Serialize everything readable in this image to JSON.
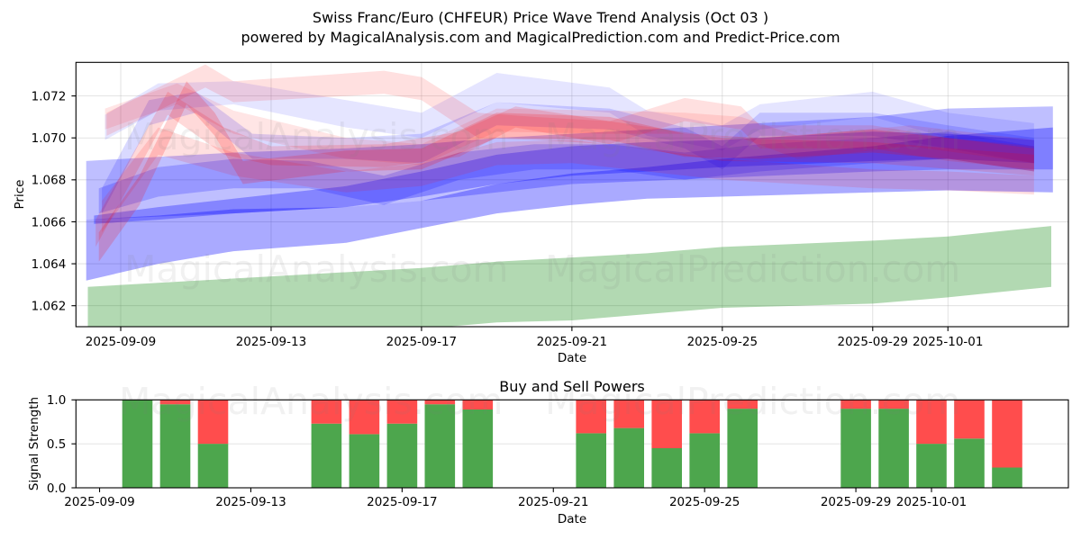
{
  "figure": {
    "title": "Swiss Franc/Euro (CHFEUR) Price Wave Trend Analysis (Oct 03 )",
    "subtitle": "powered by MagicalAnalysis.com and MagicalPrediction.com and Predict-Price.com",
    "watermarks": [
      "MagicalAnalysis.com",
      "MagicalPrediction.com"
    ]
  },
  "colors": {
    "buy": "#4da64d",
    "sell": "#ff4d4d",
    "grid": "#b0b0b0",
    "frame": "#000000"
  },
  "chart_data": [
    {
      "type": "area",
      "title": "",
      "xlabel": "Date",
      "ylabel": "Price",
      "xlim": [
        "2025-09-07T19:25",
        "2025-10-04T04:54"
      ],
      "ylim": [
        1.061,
        1.0736
      ],
      "xticks": [
        "2025-09-09",
        "2025-09-13",
        "2025-09-17",
        "2025-09-21",
        "2025-09-25",
        "2025-09-29",
        "2025-10-01"
      ],
      "yticks": [
        1.062,
        1.064,
        1.066,
        1.068,
        1.07,
        1.072
      ],
      "ytick_labels": [
        "1.062",
        "1.064",
        "1.066",
        "1.068",
        "1.070",
        "1.072"
      ],
      "grid": true,
      "legend": "none",
      "series": [
        {
          "kind": "forecast",
          "color": "#0080004d",
          "points": [
            [
              "2025-09-08T03:00",
              1.0629,
              1.0598
            ],
            [
              "2025-09-13",
              1.0634,
              1.0604
            ],
            [
              "2025-09-17",
              1.0638,
              1.0609
            ],
            [
              "2025-09-19",
              1.0641,
              1.0612
            ],
            [
              "2025-09-21",
              1.0643,
              1.0613
            ],
            [
              "2025-09-23",
              1.0645,
              1.0616
            ],
            [
              "2025-09-25",
              1.0648,
              1.0619
            ],
            [
              "2025-09-29",
              1.0651,
              1.0621
            ],
            [
              "2025-10-01",
              1.0653,
              1.0624
            ],
            [
              "2025-10-03T18:00",
              1.0658,
              1.0629
            ]
          ]
        },
        {
          "kind": "blue",
          "color": "#0000ff55",
          "points": [
            [
              "2025-09-08T02:00",
              1.0661,
              1.0632
            ],
            [
              "2025-09-10",
              1.0663,
              1.064
            ],
            [
              "2025-09-12",
              1.0666,
              1.0646
            ],
            [
              "2025-09-15",
              1.0667,
              1.065
            ],
            [
              "2025-09-17",
              1.067,
              1.0657
            ],
            [
              "2025-09-19",
              1.0678,
              1.0664
            ],
            [
              "2025-09-21",
              1.0683,
              1.0668
            ],
            [
              "2025-09-23",
              1.0686,
              1.0671
            ],
            [
              "2025-09-25",
              1.069,
              1.0672
            ],
            [
              "2025-09-29",
              1.0696,
              1.0674
            ],
            [
              "2025-10-01",
              1.0701,
              1.0675
            ],
            [
              "2025-10-03T19:00",
              1.0705,
              1.0674
            ]
          ]
        },
        {
          "kind": "blue",
          "color": "#0000ff40",
          "points": [
            [
              "2025-09-08T02:00",
              1.0689,
              1.0661
            ],
            [
              "2025-09-12",
              1.0693,
              1.0664
            ],
            [
              "2025-09-15",
              1.0695,
              1.0667
            ],
            [
              "2025-09-17",
              1.0697,
              1.067
            ],
            [
              "2025-09-19",
              1.07,
              1.0674
            ],
            [
              "2025-09-21",
              1.0702,
              1.0678
            ],
            [
              "2025-09-25",
              1.0706,
              1.0681
            ],
            [
              "2025-09-29",
              1.071,
              1.0684
            ],
            [
              "2025-10-01",
              1.0714,
              1.0685
            ],
            [
              "2025-10-03T19:00",
              1.0715,
              1.0685
            ]
          ]
        },
        {
          "kind": "blue",
          "color": "#0000ff4d",
          "points": [
            [
              "2025-09-08T07:00",
              1.0663,
              1.0659
            ],
            [
              "2025-09-10",
              1.0667,
              1.0661
            ],
            [
              "2025-09-12",
              1.0671,
              1.0664
            ],
            [
              "2025-09-15",
              1.0677,
              1.0667
            ],
            [
              "2025-09-17",
              1.0684,
              1.0672
            ],
            [
              "2025-09-19",
              1.0692,
              1.0678
            ],
            [
              "2025-09-21",
              1.0696,
              1.0682
            ],
            [
              "2025-09-23",
              1.0698,
              1.0684
            ],
            [
              "2025-09-25",
              1.0699,
              1.0686
            ],
            [
              "2025-09-29",
              1.0703,
              1.0689
            ],
            [
              "2025-10-01",
              1.0702,
              1.069
            ],
            [
              "2025-10-03T07:00",
              1.0699,
              1.0688
            ]
          ]
        },
        {
          "kind": "blue",
          "color": "#0000ff33",
          "points": [
            [
              "2025-09-08T10:00",
              1.0676,
              1.0664
            ],
            [
              "2025-09-10",
              1.0686,
              1.0672
            ],
            [
              "2025-09-12",
              1.069,
              1.0676
            ],
            [
              "2025-09-14",
              1.0689,
              1.0676
            ],
            [
              "2025-09-16",
              1.0682,
              1.0668
            ],
            [
              "2025-09-18",
              1.0693,
              1.068
            ],
            [
              "2025-09-20",
              1.0697,
              1.0685
            ],
            [
              "2025-09-22",
              1.0697,
              1.0685
            ],
            [
              "2025-09-24",
              1.0693,
              1.068
            ],
            [
              "2025-09-26",
              1.0697,
              1.0684
            ],
            [
              "2025-09-29",
              1.07,
              1.0688
            ],
            [
              "2025-10-01",
              1.0703,
              1.069
            ],
            [
              "2025-10-03T07:00",
              1.0696,
              1.0684
            ]
          ]
        },
        {
          "kind": "blue",
          "color": "#0000ff26",
          "points": [
            [
              "2025-09-08T12:00",
              1.0676,
              1.0664
            ],
            [
              "2025-09-09T18:00",
              1.0718,
              1.0706
            ],
            [
              "2025-09-11",
              1.0722,
              1.0712
            ],
            [
              "2025-09-12T12:00",
              1.0702,
              1.069
            ],
            [
              "2025-09-15",
              1.07,
              1.069
            ],
            [
              "2025-09-17",
              1.0702,
              1.0688
            ],
            [
              "2025-09-19",
              1.0717,
              1.0706
            ],
            [
              "2025-09-22",
              1.0714,
              1.0704
            ],
            [
              "2025-09-24",
              1.0705,
              1.0695
            ],
            [
              "2025-09-25",
              1.0696,
              1.0685
            ],
            [
              "2025-09-26",
              1.0712,
              1.0701
            ],
            [
              "2025-09-29",
              1.0712,
              1.0701
            ],
            [
              "2025-10-01",
              1.0706,
              1.0695
            ],
            [
              "2025-10-03T07:00",
              1.07,
              1.0688
            ]
          ]
        },
        {
          "kind": "blue",
          "color": "#0000ff1a",
          "points": [
            [
              "2025-09-08T14:00",
              1.0711,
              1.0699
            ],
            [
              "2025-09-10",
              1.0726,
              1.0713
            ],
            [
              "2025-09-12",
              1.0727,
              1.0716
            ],
            [
              "2025-09-15",
              1.0718,
              1.0705
            ],
            [
              "2025-09-17",
              1.0712,
              1.07
            ],
            [
              "2025-09-19",
              1.0731,
              1.0717
            ],
            [
              "2025-09-22",
              1.0724,
              1.0712
            ],
            [
              "2025-09-23",
              1.0713,
              1.0701
            ],
            [
              "2025-09-25",
              1.0706,
              1.0694
            ],
            [
              "2025-09-26",
              1.0716,
              1.0704
            ],
            [
              "2025-09-29",
              1.0722,
              1.071
            ],
            [
              "2025-10-01",
              1.0712,
              1.07
            ],
            [
              "2025-10-03T07:00",
              1.0707,
              1.0695
            ]
          ]
        },
        {
          "kind": "red",
          "color": "#ff00001f",
          "points": [
            [
              "2025-09-08T15:00",
              1.0712,
              1.0701
            ],
            [
              "2025-09-11T06:00",
              1.0735,
              1.0724
            ],
            [
              "2025-09-12",
              1.0727,
              1.0717
            ],
            [
              "2025-09-16",
              1.0732,
              1.0721
            ],
            [
              "2025-09-17",
              1.0729,
              1.0718
            ],
            [
              "2025-09-18T12:00",
              1.0712,
              1.07
            ],
            [
              "2025-09-20",
              1.071,
              1.0699
            ],
            [
              "2025-09-22",
              1.0708,
              1.0697
            ],
            [
              "2025-09-24",
              1.0719,
              1.0708
            ],
            [
              "2025-09-25T12:00",
              1.0715,
              1.0704
            ],
            [
              "2025-09-26",
              1.0706,
              1.0695
            ],
            [
              "2025-09-29",
              1.0706,
              1.0695
            ],
            [
              "2025-10-01",
              1.07,
              1.0689
            ],
            [
              "2025-10-03T07:00",
              1.0696,
              1.0685
            ]
          ]
        },
        {
          "kind": "red",
          "color": "#ff00002e",
          "points": [
            [
              "2025-09-08T10:00",
              1.0655,
              1.0641
            ],
            [
              "2025-09-09T12:00",
              1.0682,
              1.0668
            ],
            [
              "2025-09-10T18:00",
              1.0727,
              1.0716
            ],
            [
              "2025-09-11T12:00",
              1.0712,
              1.0701
            ],
            [
              "2025-09-12T06:00",
              1.0689,
              1.0678
            ],
            [
              "2025-09-15",
              1.0694,
              1.0684
            ],
            [
              "2025-09-17",
              1.0695,
              1.0685
            ],
            [
              "2025-09-19",
              1.0712,
              1.07
            ],
            [
              "2025-09-22",
              1.071,
              1.0699
            ],
            [
              "2025-09-24",
              1.0702,
              1.0691
            ],
            [
              "2025-09-26",
              1.07,
              1.069
            ],
            [
              "2025-09-29",
              1.0704,
              1.0693
            ],
            [
              "2025-10-01",
              1.07,
              1.069
            ],
            [
              "2025-10-03T07:00",
              1.0695,
              1.0684
            ]
          ]
        },
        {
          "kind": "red",
          "color": "#ff000026",
          "points": [
            [
              "2025-09-08T08:00",
              1.0661,
              1.0648
            ],
            [
              "2025-09-10T06:00",
              1.0722,
              1.0711
            ],
            [
              "2025-09-11T18:00",
              1.0705,
              1.0692
            ],
            [
              "2025-09-13",
              1.0696,
              1.0687
            ],
            [
              "2025-09-16",
              1.0697,
              1.0686
            ],
            [
              "2025-09-18",
              1.0703,
              1.0691
            ],
            [
              "2025-09-19T12:00",
              1.0715,
              1.0705
            ],
            [
              "2025-09-22",
              1.0708,
              1.0697
            ],
            [
              "2025-09-25",
              1.07,
              1.0689
            ],
            [
              "2025-09-29",
              1.0698,
              1.0688
            ],
            [
              "2025-10-03T07:00",
              1.0692,
              1.0682
            ]
          ]
        },
        {
          "kind": "red",
          "color": "#ff00001f",
          "points": [
            [
              "2025-09-08T12:00",
              1.067,
              1.0655
            ],
            [
              "2025-09-10",
              1.0705,
              1.0692
            ],
            [
              "2025-09-12",
              1.0693,
              1.0682
            ],
            [
              "2025-09-15",
              1.0684,
              1.0674
            ],
            [
              "2025-09-17",
              1.0688,
              1.0677
            ],
            [
              "2025-09-19",
              1.0698,
              1.0687
            ],
            [
              "2025-09-21",
              1.0699,
              1.0688
            ],
            [
              "2025-09-25",
              1.069,
              1.068
            ],
            [
              "2025-09-29",
              1.0685,
              1.0676
            ],
            [
              "2025-10-01",
              1.0684,
              1.0675
            ],
            [
              "2025-10-03T07:00",
              1.0682,
              1.0673
            ]
          ]
        },
        {
          "kind": "red",
          "color": "#ff00001a",
          "points": [
            [
              "2025-09-08T14:00",
              1.0714,
              1.0704
            ],
            [
              "2025-09-10T12:00",
              1.0726,
              1.0716
            ],
            [
              "2025-09-12",
              1.0713,
              1.0702
            ],
            [
              "2025-09-15",
              1.07,
              1.069
            ],
            [
              "2025-09-17",
              1.0697,
              1.0687
            ],
            [
              "2025-09-19",
              1.0714,
              1.0703
            ],
            [
              "2025-09-22",
              1.0713,
              1.0702
            ],
            [
              "2025-09-24",
              1.0712,
              1.0702
            ],
            [
              "2025-09-25T12:00",
              1.071,
              1.07
            ],
            [
              "2025-09-27",
              1.0701,
              1.069
            ],
            [
              "2025-09-30",
              1.0706,
              1.0696
            ],
            [
              "2025-10-03T07:00",
              1.0699,
              1.0688
            ]
          ]
        }
      ]
    },
    {
      "type": "bar",
      "stacked": true,
      "title": "Buy and Sell Powers",
      "xlabel": "Date",
      "ylabel": "Signal Strength",
      "xlim": [
        "2025-09-08T09:00",
        "2025-10-04T14:53"
      ],
      "ylim": [
        0,
        1
      ],
      "xticks": [
        "2025-09-09",
        "2025-09-13",
        "2025-09-17",
        "2025-09-21",
        "2025-09-25",
        "2025-09-29",
        "2025-10-01"
      ],
      "yticks": [
        0,
        0.5,
        1.0
      ],
      "ytick_labels": [
        "0.0",
        "0.5",
        "1.0"
      ],
      "grid": true,
      "legend": "none",
      "categories": [
        "2025-09-10",
        "2025-09-11",
        "2025-09-12",
        "2025-09-15",
        "2025-09-16",
        "2025-09-17",
        "2025-09-18",
        "2025-09-19",
        "2025-09-22",
        "2025-09-23",
        "2025-09-24",
        "2025-09-25",
        "2025-09-26",
        "2025-09-29",
        "2025-09-30",
        "2025-10-01",
        "2025-10-02",
        "2025-10-03"
      ],
      "series": [
        {
          "name": "Buy",
          "values": [
            1.0,
            0.95,
            0.5,
            0.73,
            0.61,
            0.73,
            0.95,
            0.89,
            0.62,
            0.68,
            0.45,
            0.62,
            0.9,
            0.9,
            0.9,
            0.5,
            0.56,
            0.23
          ]
        },
        {
          "name": "Sell",
          "values": [
            0.0,
            0.05,
            0.5,
            0.27,
            0.39,
            0.27,
            0.05,
            0.11,
            0.38,
            0.32,
            0.55,
            0.38,
            0.1,
            0.1,
            0.1,
            0.5,
            0.44,
            0.77
          ]
        }
      ]
    }
  ]
}
